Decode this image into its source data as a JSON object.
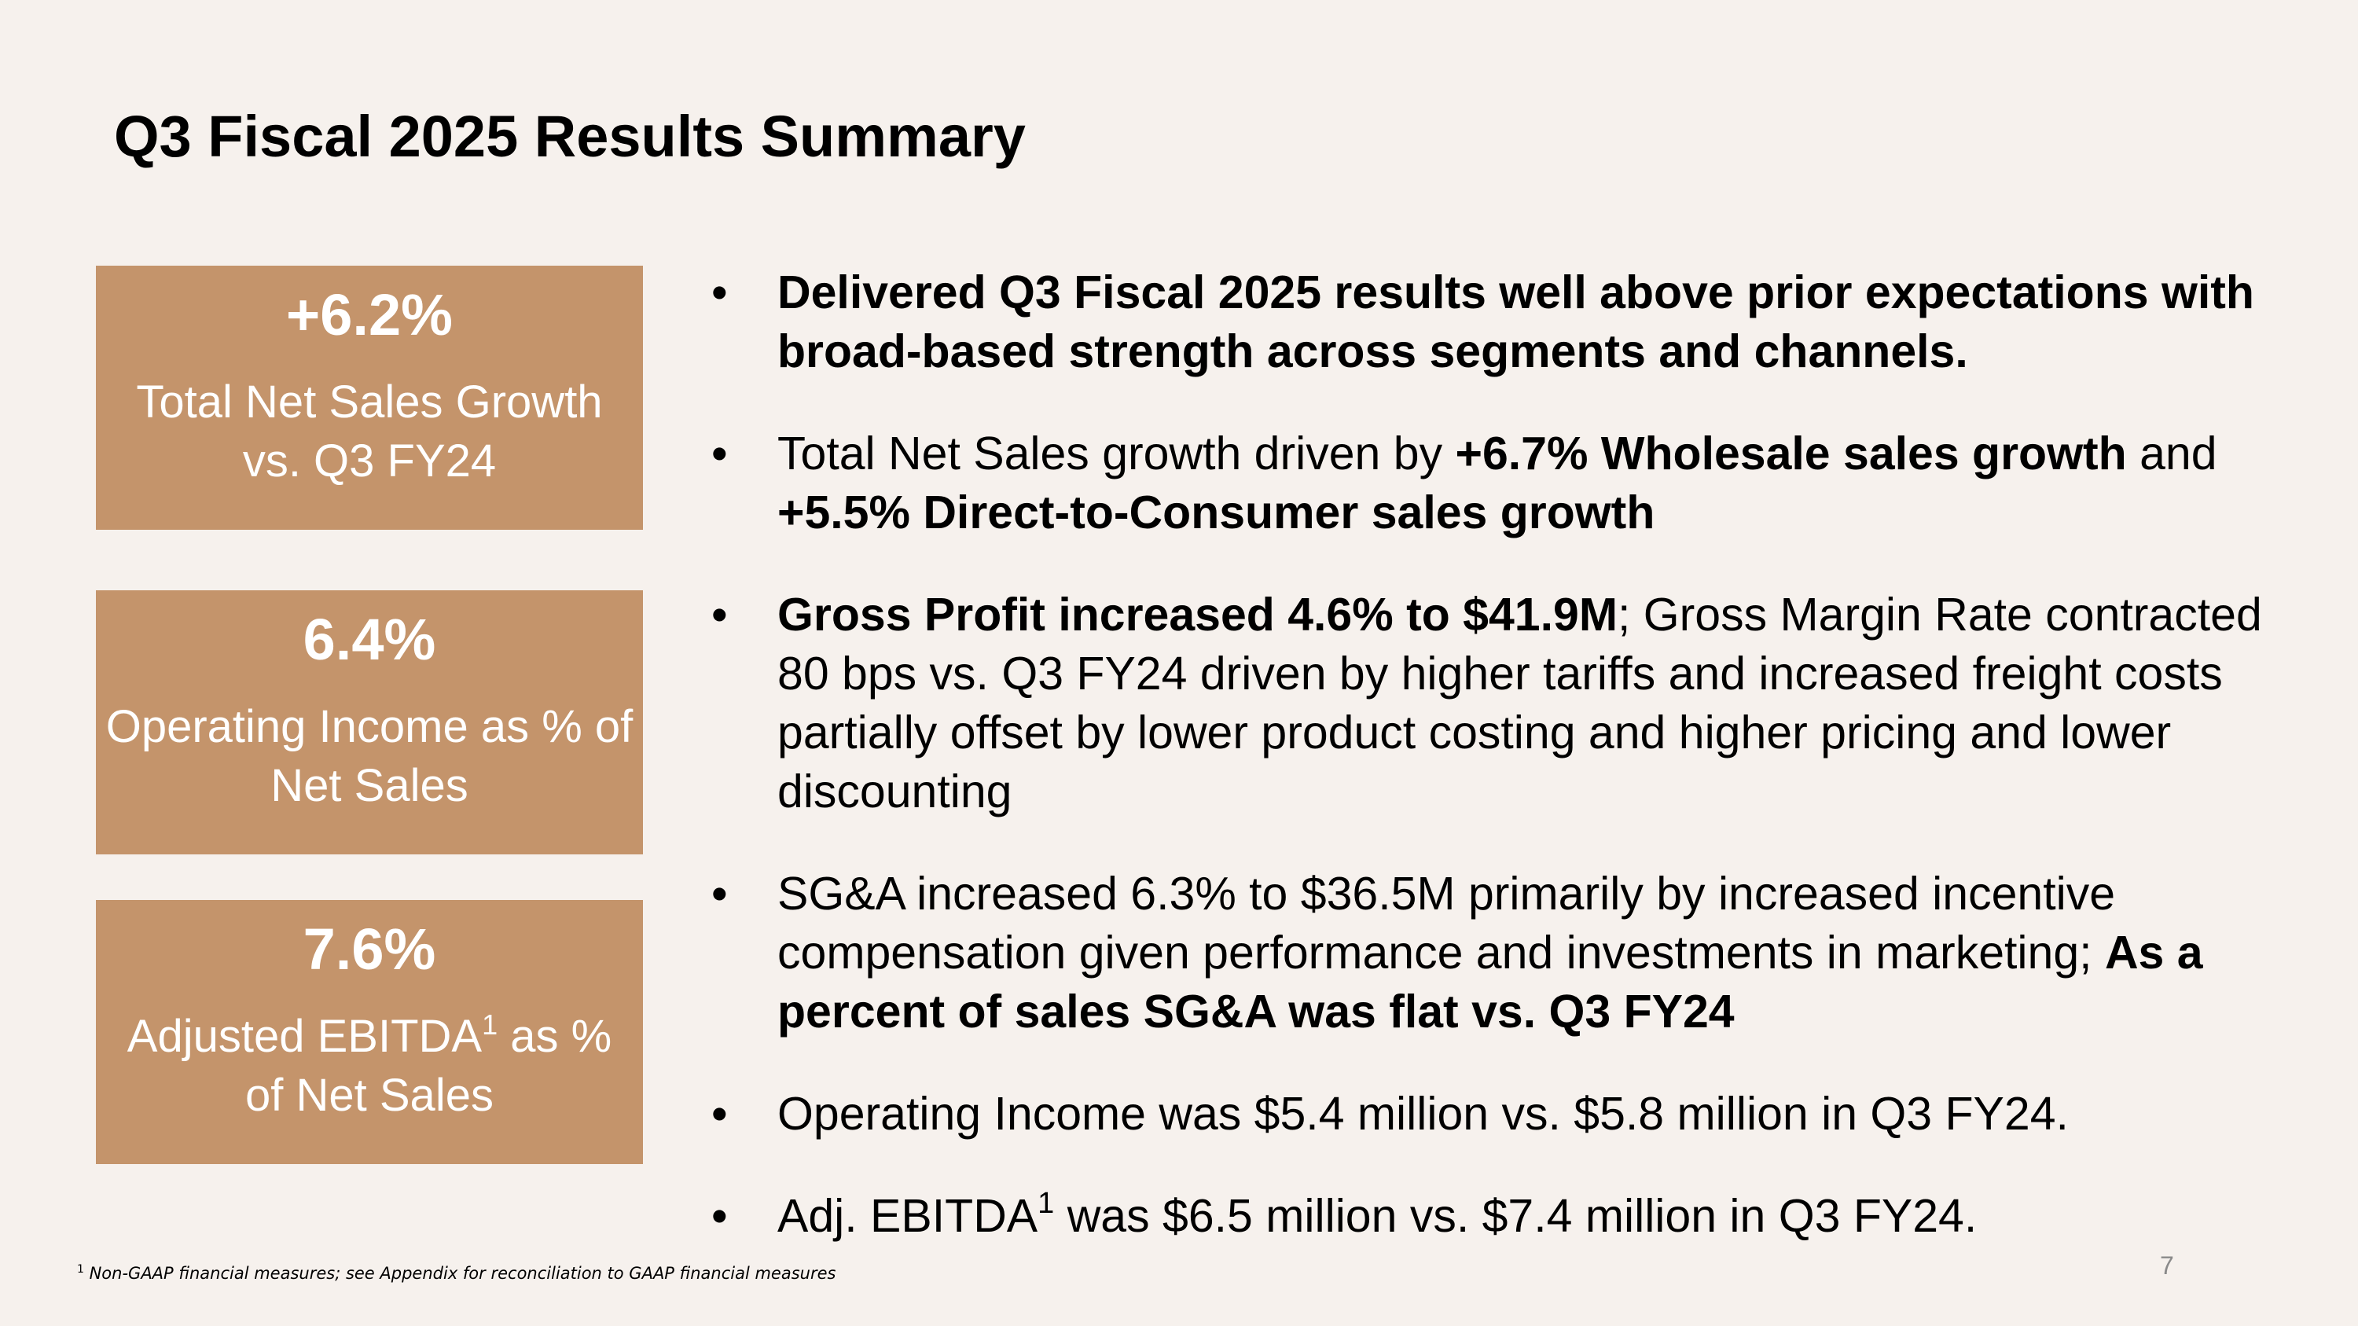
{
  "title": "Q3 Fiscal 2025 Results Summary",
  "kpis": [
    {
      "value": "+6.2%",
      "label": "Total Net Sales Growth vs. Q3 FY24"
    },
    {
      "value": "6.4%",
      "label": "Operating Income as % of Net Sales"
    },
    {
      "value": "7.6%",
      "label_before": "Adjusted EBITDA",
      "label_sup": "1",
      "label_after": " as % of Net Sales"
    }
  ],
  "bullets": {
    "b1": {
      "bold": "Delivered Q3 Fiscal 2025 results well above prior expectations with broad-based strength across segments and channels."
    },
    "b2": {
      "text1": "Total Net Sales growth driven by ",
      "bold1": "+6.7% Wholesale sales growth",
      "text2": " and ",
      "bold2": "+5.5% Direct-to-Consumer sales growth"
    },
    "b3": {
      "bold": "Gross Profit increased 4.6% to $41.9M",
      "text": "; Gross Margin Rate contracted 80 bps vs. Q3 FY24 driven by higher tariffs and increased freight costs partially offset by lower product costing and higher pricing and lower discounting"
    },
    "b4": {
      "text": "SG&A increased 6.3% to $36.5M primarily by increased incentive compensation given performance and investments in marketing; ",
      "bold": "As a percent of sales SG&A was flat vs. Q3 FY24"
    },
    "b5": {
      "text": "Operating Income was $5.4 million vs. $5.8 million in Q3 FY24."
    },
    "b6": {
      "text1": "Adj. EBITDA",
      "sup": "1",
      "text2": " was $6.5 million vs. $7.4 million in Q3 FY24."
    }
  },
  "bullet_symbol": "•",
  "footnote": {
    "sup": "1",
    "text": " Non-GAAP financial measures; see Appendix for reconciliation to GAAP financial measures"
  },
  "page_number": "7",
  "colors": {
    "background": "#f6f1ed",
    "kpi_box": "#c4946b",
    "kpi_text": "#ffffff",
    "body_text": "#000000"
  }
}
